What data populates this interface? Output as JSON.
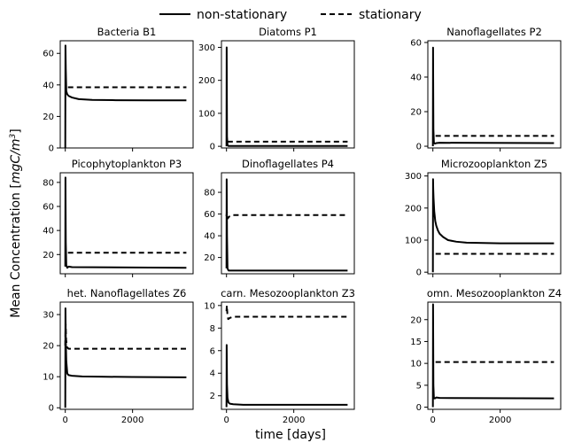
{
  "legend": {
    "items": [
      "non-stationary",
      "stationary"
    ]
  },
  "ylabel_text": "Mean Concentration [",
  "ylabel_unit": "mgC/m",
  "ylabel_exp": "3",
  "ylabel_close": "]",
  "xlabel": "time [days]",
  "chart_data": [
    {
      "type": "line",
      "title": "Bacteria B1",
      "xlim": [
        -150,
        3800
      ],
      "ylim": [
        0,
        68
      ],
      "x_ticks": [
        0,
        2000
      ],
      "x_tick_labels": [
        "",
        ""
      ],
      "y_ticks": [
        0,
        20,
        40,
        60
      ],
      "y_tick_labels": [
        "0",
        "20",
        "40",
        "60"
      ],
      "series": [
        {
          "name": "non-stationary",
          "style": "solid",
          "x": [
            0,
            5,
            15,
            30,
            60,
            100,
            200,
            400,
            800,
            1500,
            2500,
            3600
          ],
          "y": [
            0,
            65,
            50,
            36,
            34,
            33,
            32,
            31,
            30.5,
            30.3,
            30.2,
            30.2
          ]
        },
        {
          "name": "stationary",
          "style": "dashed",
          "x": [
            80,
            3600
          ],
          "y": [
            38.5,
            38.5
          ]
        }
      ]
    },
    {
      "type": "line",
      "title": "Diatoms P1",
      "xlim": [
        -150,
        3800
      ],
      "ylim": [
        -5,
        320
      ],
      "x_ticks": [
        0,
        2000
      ],
      "x_tick_labels": [
        "",
        ""
      ],
      "y_ticks": [
        0,
        100,
        200,
        300
      ],
      "y_tick_labels": [
        "0",
        "100",
        "200",
        "300"
      ],
      "series": [
        {
          "name": "non-stationary",
          "style": "solid",
          "x": [
            0,
            5,
            15,
            30,
            60,
            100,
            500,
            3600
          ],
          "y": [
            0,
            300,
            30,
            3,
            1,
            1,
            1,
            1
          ]
        },
        {
          "name": "stationary",
          "style": "dashed",
          "x": [
            30,
            3600
          ],
          "y": [
            14,
            14
          ]
        }
      ]
    },
    {
      "type": "line",
      "title": "Nanoflagellates P2",
      "xlim": [
        -150,
        3800
      ],
      "ylim": [
        -1,
        61
      ],
      "x_ticks": [
        0,
        2000
      ],
      "x_tick_labels": [
        "",
        ""
      ],
      "y_ticks": [
        0,
        20,
        40,
        60
      ],
      "y_tick_labels": [
        "0",
        "20",
        "40",
        "60"
      ],
      "series": [
        {
          "name": "non-stationary",
          "style": "solid",
          "x": [
            0,
            5,
            15,
            30,
            60,
            100,
            200,
            3600
          ],
          "y": [
            0,
            57,
            10,
            2,
            1.5,
            1.8,
            2,
            1.8
          ]
        },
        {
          "name": "stationary",
          "style": "dashed",
          "x": [
            80,
            3600
          ],
          "y": [
            6,
            6
          ]
        }
      ]
    },
    {
      "type": "line",
      "title": "Picophytoplankton P3",
      "xlim": [
        -150,
        3800
      ],
      "ylim": [
        4,
        88
      ],
      "x_ticks": [
        0,
        2000
      ],
      "x_tick_labels": [
        "",
        ""
      ],
      "y_ticks": [
        20,
        40,
        60,
        80
      ],
      "y_tick_labels": [
        "20",
        "40",
        "60",
        "80"
      ],
      "series": [
        {
          "name": "non-stationary",
          "style": "solid",
          "x": [
            0,
            5,
            15,
            30,
            60,
            100,
            200,
            3600
          ],
          "y": [
            10,
            84,
            30,
            11,
            9,
            10,
            9.5,
            9
          ]
        },
        {
          "name": "stationary",
          "style": "dashed",
          "x": [
            80,
            3600
          ],
          "y": [
            21.5,
            21.5
          ]
        }
      ]
    },
    {
      "type": "line",
      "title": "Dinoflagellates P4",
      "xlim": [
        -150,
        3800
      ],
      "ylim": [
        5,
        98
      ],
      "x_ticks": [
        0,
        2000
      ],
      "x_tick_labels": [
        "",
        ""
      ],
      "y_ticks": [
        20,
        40,
        60,
        80
      ],
      "y_tick_labels": [
        "20",
        "40",
        "60",
        "80"
      ],
      "series": [
        {
          "name": "non-stationary",
          "style": "solid",
          "x": [
            0,
            5,
            15,
            30,
            60,
            100,
            200,
            3600
          ],
          "y": [
            10,
            92,
            40,
            10,
            8,
            8,
            8,
            8
          ]
        },
        {
          "name": "stationary",
          "style": "dashed",
          "x": [
            0,
            10,
            20,
            40,
            60,
            100,
            200,
            400,
            3600
          ],
          "y": [
            58,
            62,
            57,
            56,
            57,
            58,
            59,
            59,
            59
          ]
        }
      ]
    },
    {
      "type": "line",
      "title": "Microzooplankton Z5",
      "xlim": [
        -150,
        3800
      ],
      "ylim": [
        -5,
        310
      ],
      "x_ticks": [
        0,
        2000
      ],
      "x_tick_labels": [
        "",
        ""
      ],
      "y_ticks": [
        0,
        100,
        200,
        300
      ],
      "y_tick_labels": [
        "0",
        "100",
        "200",
        "300"
      ],
      "series": [
        {
          "name": "non-stationary",
          "style": "solid",
          "x": [
            0,
            5,
            10,
            20,
            40,
            70,
            100,
            150,
            200,
            300,
            450,
            700,
            1000,
            1500,
            2000,
            2500,
            3000,
            3600
          ],
          "y": [
            0,
            290,
            260,
            230,
            190,
            160,
            145,
            130,
            120,
            110,
            100,
            95,
            92,
            91,
            90,
            90,
            90,
            90
          ]
        },
        {
          "name": "stationary",
          "style": "dashed",
          "x": [
            80,
            3600
          ],
          "y": [
            57,
            57
          ]
        }
      ]
    },
    {
      "type": "line",
      "title": "het. Nanoflagellates Z6",
      "xlim": [
        -150,
        3800
      ],
      "ylim": [
        -0.5,
        34
      ],
      "x_ticks": [
        0,
        2000
      ],
      "x_tick_labels": [
        "0",
        "2000"
      ],
      "y_ticks": [
        0,
        10,
        20,
        30
      ],
      "y_tick_labels": [
        "0",
        "10",
        "20",
        "30"
      ],
      "series": [
        {
          "name": "non-stationary",
          "style": "solid",
          "x": [
            0,
            5,
            15,
            30,
            60,
            100,
            200,
            500,
            1000,
            2000,
            3600
          ],
          "y": [
            0,
            32,
            22,
            15,
            11,
            10.5,
            10.3,
            10.1,
            10,
            9.9,
            9.8
          ]
        },
        {
          "name": "stationary",
          "style": "dashed",
          "x": [
            0,
            10,
            25,
            50,
            100,
            200,
            3600
          ],
          "y": [
            20,
            27,
            22,
            19.5,
            19,
            19,
            19
          ]
        }
      ]
    },
    {
      "type": "line",
      "title": "carn. Mesozooplankton Z3",
      "xlim": [
        -150,
        3800
      ],
      "ylim": [
        0.8,
        10.3
      ],
      "x_ticks": [
        0,
        2000
      ],
      "x_tick_labels": [
        "0",
        "2000"
      ],
      "y_ticks": [
        2,
        4,
        6,
        8,
        10
      ],
      "y_tick_labels": [
        "2",
        "4",
        "6",
        "8",
        "10"
      ],
      "series": [
        {
          "name": "non-stationary",
          "style": "solid",
          "x": [
            0,
            5,
            15,
            30,
            60,
            100,
            200,
            500,
            1000,
            2000,
            3600
          ],
          "y": [
            1,
            6.5,
            3,
            1.8,
            1.4,
            1.3,
            1.25,
            1.2,
            1.2,
            1.2,
            1.2
          ]
        },
        {
          "name": "stationary",
          "style": "dashed",
          "x": [
            0,
            10,
            25,
            50,
            100,
            200,
            500,
            3600
          ],
          "y": [
            9.5,
            10,
            9.3,
            8.8,
            8.9,
            9,
            9,
            9
          ]
        }
      ]
    },
    {
      "type": "line",
      "title": "omn. Mesozooplankton Z4",
      "xlim": [
        -150,
        3800
      ],
      "ylim": [
        -0.5,
        24
      ],
      "x_ticks": [
        0,
        2000
      ],
      "x_tick_labels": [
        "0",
        "2000"
      ],
      "y_ticks": [
        0,
        5,
        10,
        15,
        20
      ],
      "y_tick_labels": [
        "0",
        "5",
        "10",
        "15",
        "20"
      ],
      "series": [
        {
          "name": "non-stationary",
          "style": "solid",
          "x": [
            0,
            5,
            15,
            30,
            60,
            100,
            200,
            3600
          ],
          "y": [
            0,
            23.5,
            5,
            2,
            2,
            2.2,
            2.1,
            2
          ]
        },
        {
          "name": "stationary",
          "style": "dashed",
          "x": [
            80,
            3600
          ],
          "y": [
            10.3,
            10.3
          ]
        }
      ]
    }
  ]
}
